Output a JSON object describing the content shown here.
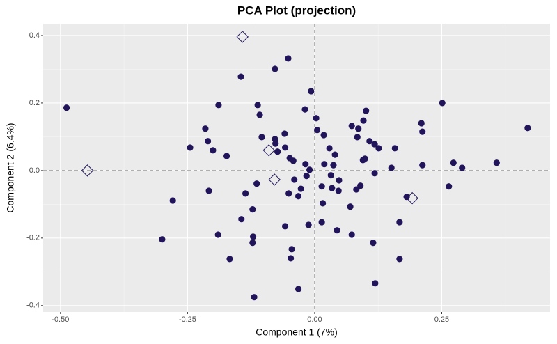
{
  "chart_data": {
    "type": "scatter",
    "title": "PCA Plot (projection)",
    "x_label": "Component 1 (7%)",
    "y_label": "Component 2 (6.4%)",
    "xlim": [
      -0.534,
      0.463
    ],
    "ylim": [
      -0.419,
      0.435
    ],
    "xticks": [
      {
        "value": -0.5,
        "label": "-0.50"
      },
      -0.25,
      {
        "value": 0,
        "label": "0.00"
      },
      0.25
    ],
    "yticks": [
      -0.4,
      -0.2,
      {
        "value": 0,
        "label": "0.0"
      },
      0.2,
      0.4
    ],
    "xminor": [
      -0.375,
      -0.125,
      0.125,
      0.375
    ],
    "yminor": [
      -0.3,
      -0.1,
      0.1,
      0.3
    ],
    "grid": true,
    "hline": 0,
    "vline": 0,
    "series": [
      {
        "color": "#22145a",
        "marker": "circle",
        "x": [
          -0.488,
          -0.245,
          -0.279,
          -0.3,
          -0.215,
          -0.21,
          -0.2,
          -0.208,
          -0.189,
          -0.173,
          -0.19,
          -0.167,
          -0.145,
          -0.136,
          -0.144,
          -0.122,
          -0.121,
          -0.122,
          -0.119,
          -0.112,
          -0.108,
          -0.104,
          -0.114,
          -0.078,
          -0.078,
          -0.077,
          -0.073,
          -0.052,
          -0.059,
          -0.058,
          -0.049,
          -0.042,
          -0.058,
          -0.051,
          -0.045,
          -0.047,
          -0.04,
          -0.027,
          -0.032,
          -0.032,
          -0.019,
          -0.018,
          -0.016,
          -0.012,
          -0.007,
          0.003,
          0.005,
          -0.01,
          0.018,
          0.019,
          0.014,
          0.016,
          0.014,
          0.029,
          0.032,
          0.037,
          0.04,
          0.034,
          0.048,
          0.047,
          0.044,
          0.073,
          0.084,
          0.086,
          0.096,
          0.101,
          0.095,
          0.099,
          0.108,
          0.118,
          0.126,
          0.09,
          0.082,
          0.07,
          0.073,
          0.118,
          0.115,
          0.119,
          0.158,
          0.151,
          0.167,
          0.167,
          0.181,
          0.21,
          0.212,
          0.212,
          0.251,
          0.264,
          0.273,
          0.29,
          0.358,
          0.419
        ],
        "values": [
          0.186,
          0.068,
          -0.089,
          -0.204,
          0.124,
          0.087,
          0.06,
          -0.06,
          0.194,
          0.043,
          -0.19,
          -0.262,
          0.278,
          -0.068,
          -0.144,
          -0.115,
          -0.196,
          -0.214,
          -0.375,
          0.194,
          0.165,
          0.099,
          -0.039,
          0.301,
          0.093,
          0.08,
          0.056,
          0.332,
          0.109,
          0.068,
          0.037,
          0.029,
          -0.165,
          -0.068,
          -0.233,
          -0.26,
          -0.027,
          -0.054,
          -0.076,
          -0.351,
          0.181,
          0.019,
          -0.016,
          -0.161,
          0.235,
          0.155,
          0.12,
          0.002,
          0.105,
          0.019,
          -0.047,
          -0.097,
          -0.153,
          0.066,
          -0.014,
          0.016,
          0.047,
          -0.052,
          -0.029,
          -0.06,
          -0.177,
          0.132,
          0.099,
          0.124,
          0.148,
          0.177,
          0.031,
          0.035,
          0.087,
          0.078,
          0.066,
          -0.045,
          -0.056,
          -0.107,
          -0.19,
          -0.008,
          -0.214,
          -0.334,
          0.066,
          0.008,
          -0.153,
          -0.262,
          -0.078,
          0.14,
          0.115,
          0.016,
          0.2,
          -0.047,
          0.023,
          0.008,
          0.023,
          0.126
        ]
      },
      {
        "color": "#22145a",
        "marker": "diamond",
        "x": [
          -0.142,
          -0.447,
          -0.09,
          -0.079,
          0.192
        ],
        "values": [
          0.396,
          0.0,
          0.06,
          -0.027,
          -0.082
        ]
      }
    ]
  }
}
